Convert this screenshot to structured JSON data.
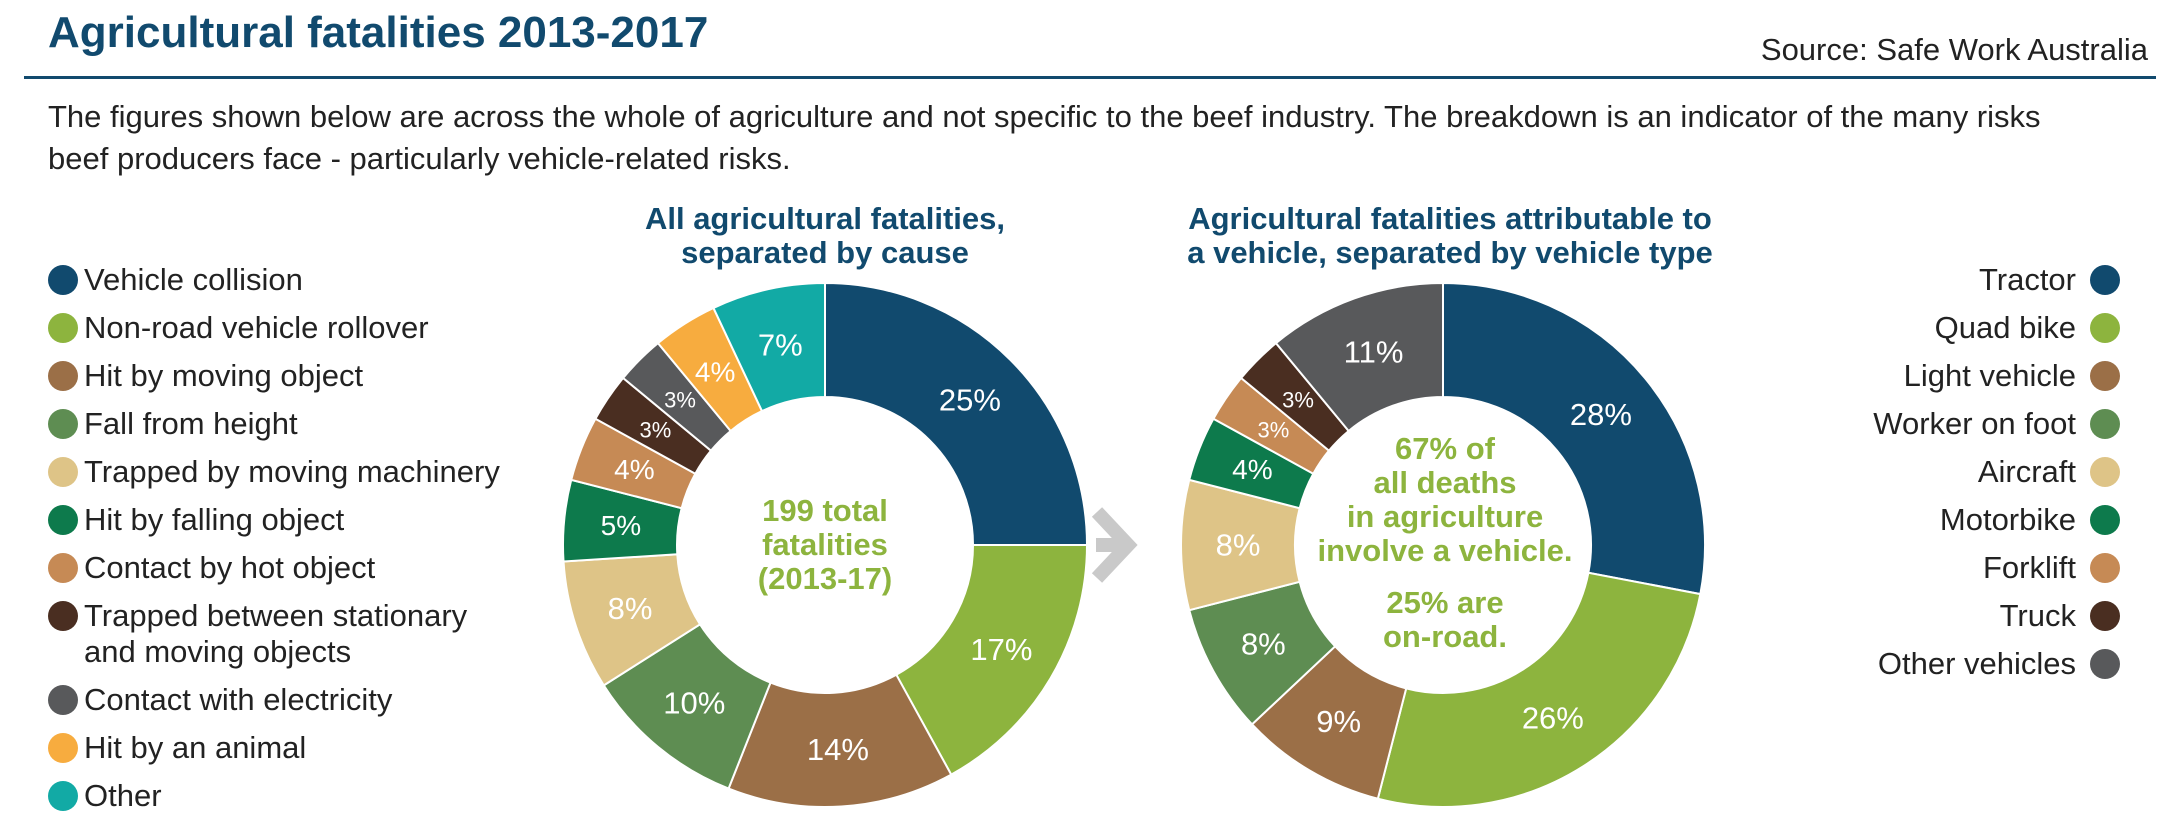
{
  "header": {
    "title": "Agricultural fatalities 2013-2017",
    "source": "Source: Safe Work Australia",
    "intro": "The figures shown below are across the whole of agriculture and not specific to the beef industry. The breakdown is an indicator of the many risks beef producers face - particularly vehicle-related risks."
  },
  "legend_left": [
    {
      "label": "Vehicle collision",
      "color": "#114a6e"
    },
    {
      "label": "Non-road vehicle rollover",
      "color": "#8db43e"
    },
    {
      "label": "Hit by moving object",
      "color": "#9b6f47"
    },
    {
      "label": "Fall from height",
      "color": "#5e8d52"
    },
    {
      "label": "Trapped by moving machinery",
      "color": "#dec487"
    },
    {
      "label": "Hit by falling object",
      "color": "#0d7a4c"
    },
    {
      "label": "Contact by hot object",
      "color": "#c68a55"
    },
    {
      "label": "Trapped between stationary\nand moving objects",
      "color": "#4a2e21"
    },
    {
      "label": "Contact with electricity",
      "color": "#58595b"
    },
    {
      "label": "Hit by an animal",
      "color": "#f7ac3f"
    },
    {
      "label": "Other",
      "color": "#12aaa5"
    }
  ],
  "legend_right": [
    {
      "label": "Tractor",
      "color": "#114a6e"
    },
    {
      "label": "Quad bike",
      "color": "#8db43e"
    },
    {
      "label": "Light vehicle",
      "color": "#9b6f47"
    },
    {
      "label": "Worker on foot",
      "color": "#5e8d52"
    },
    {
      "label": "Aircraft",
      "color": "#dec487"
    },
    {
      "label": "Motorbike",
      "color": "#0d7a4c"
    },
    {
      "label": "Forklift",
      "color": "#c68a55"
    },
    {
      "label": "Truck",
      "color": "#4a2e21"
    },
    {
      "label": "Other vehicles",
      "color": "#58595b"
    }
  ],
  "centers": {
    "chart1": "199 total\nfatalities\n(2013-17)",
    "chart2": "67% of\nall deaths\nin agriculture\ninvolve a vehicle.",
    "chart2b": "25% are\non-road."
  },
  "chart_data": [
    {
      "type": "pie",
      "title": "All agricultural fatalities,\nseparated by cause",
      "categories": [
        "Vehicle collision",
        "Non-road vehicle rollover",
        "Hit by moving object",
        "Fall from height",
        "Trapped by moving machinery",
        "Hit by falling object",
        "Contact by hot object",
        "Trapped between stationary and moving objects",
        "Contact with electricity",
        "Hit by an animal",
        "Other"
      ],
      "values": [
        25,
        17,
        14,
        10,
        8,
        5,
        4,
        3,
        3,
        4,
        7
      ],
      "labels": [
        "25%",
        "17%",
        "14%",
        "10%",
        "8%",
        "5%",
        "4%",
        "3%",
        "3%",
        "4%",
        "7%"
      ],
      "colors": [
        "#114a6e",
        "#8db43e",
        "#9b6f47",
        "#5e8d52",
        "#dec487",
        "#0d7a4c",
        "#c68a55",
        "#4a2e21",
        "#58595b",
        "#f7ac3f",
        "#12aaa5"
      ],
      "label_colors": [
        "#ffffff",
        "#ffffff",
        "#ffffff",
        "#ffffff",
        "#ffffff",
        "#ffffff",
        "#ffffff",
        "#ffffff",
        "#ffffff",
        "#ffffff",
        "#ffffff"
      ]
    },
    {
      "type": "pie",
      "title": "Agricultural fatalities attributable to\na vehicle, separated by vehicle type",
      "categories": [
        "Tractor",
        "Quad bike",
        "Light vehicle",
        "Worker on foot",
        "Aircraft",
        "Motorbike",
        "Forklift",
        "Truck",
        "Other vehicles"
      ],
      "values": [
        28,
        26,
        9,
        8,
        8,
        4,
        3,
        3,
        11
      ],
      "labels": [
        "28%",
        "26%",
        "9%",
        "8%",
        "8%",
        "4%",
        "3%",
        "3%",
        "11%"
      ],
      "colors": [
        "#114a6e",
        "#8db43e",
        "#9b6f47",
        "#5e8d52",
        "#dec487",
        "#0d7a4c",
        "#c68a55",
        "#4a2e21",
        "#58595b"
      ],
      "label_colors": [
        "#ffffff",
        "#ffffff",
        "#ffffff",
        "#ffffff",
        "#ffffff",
        "#ffffff",
        "#ffffff",
        "#ffffff",
        "#ffffff"
      ]
    }
  ]
}
